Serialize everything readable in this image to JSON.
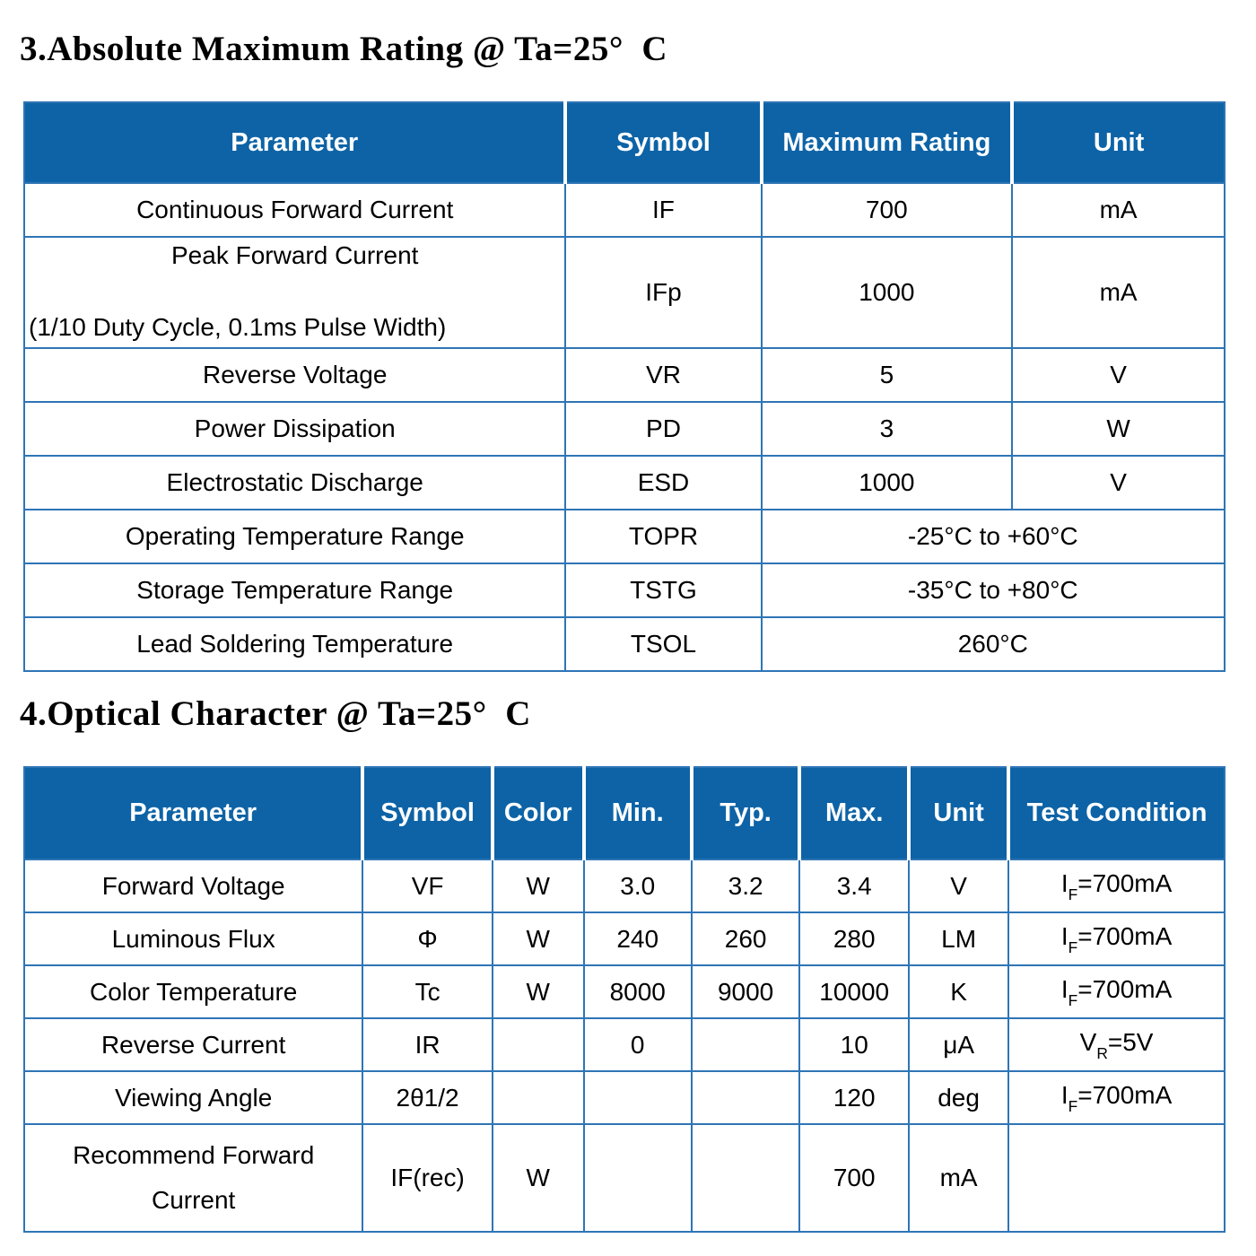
{
  "colors": {
    "header_bg": "#0d63a6",
    "border": "#2e75b6",
    "header_text": "#ffffff",
    "body_text": "#000000"
  },
  "section3": {
    "title": "3.Absolute Maximum Rating @ Ta=25°  C",
    "columns": [
      "Parameter",
      "Symbol",
      "Maximum Rating",
      "Unit"
    ],
    "rows": [
      {
        "parameter": [
          "Continuous Forward Current"
        ],
        "symbol": "IF",
        "rating": "700",
        "unit": "mA"
      },
      {
        "parameter": [
          "Peak Forward Current",
          "(1/10 Duty Cycle, 0.1ms Pulse Width)"
        ],
        "tall": true,
        "second_line_left": true,
        "symbol": "IFp",
        "rating": "1000",
        "unit": "mA"
      },
      {
        "parameter": [
          "Reverse Voltage"
        ],
        "symbol": "VR",
        "rating": "5",
        "unit": "V"
      },
      {
        "parameter": [
          "Power Dissipation"
        ],
        "symbol": "PD",
        "rating": "3",
        "unit": "W"
      },
      {
        "parameter": [
          "Electrostatic Discharge"
        ],
        "symbol": "ESD",
        "rating": "1000",
        "unit": "V"
      },
      {
        "parameter": [
          "Operating Temperature Range"
        ],
        "symbol": "TOPR",
        "rating": "-25°C to +60°C",
        "span_unit": true
      },
      {
        "parameter": [
          "Storage Temperature Range"
        ],
        "symbol": "TSTG",
        "rating": "-35°C to +80°C",
        "span_unit": true
      },
      {
        "parameter": [
          "Lead Soldering Temperature"
        ],
        "symbol": "TSOL",
        "rating": "260°C",
        "span_unit": true
      }
    ]
  },
  "section4": {
    "title": "4.Optical Character @ Ta=25°  C",
    "columns": [
      "Parameter",
      "Symbol",
      "Color",
      "Min.",
      "Typ.",
      "Max.",
      "Unit",
      "Test Condition"
    ],
    "rows": [
      {
        "parameter": [
          "Forward Voltage"
        ],
        "symbol": "VF",
        "color": "W",
        "min": "3.0",
        "typ": "3.2",
        "max": "3.4",
        "unit": "V",
        "test": {
          "main": "I",
          "sub": "F",
          "tail": "=700mA"
        }
      },
      {
        "parameter": [
          "Luminous Flux"
        ],
        "symbol": "Φ",
        "color": "W",
        "min": "240",
        "typ": "260",
        "max": "280",
        "unit": "LM",
        "test": {
          "main": "I",
          "sub": "F",
          "tail": "=700mA"
        }
      },
      {
        "parameter": [
          "Color Temperature"
        ],
        "symbol": "Tc",
        "color": "W",
        "min": "8000",
        "typ": "9000",
        "max": "10000",
        "unit": "K",
        "test": {
          "main": "I",
          "sub": "F",
          "tail": "=700mA"
        }
      },
      {
        "parameter": [
          "Reverse Current"
        ],
        "symbol": "IR",
        "color": "",
        "min": "0",
        "typ": "",
        "max": "10",
        "unit": "μA",
        "test": {
          "main": "V",
          "sub": "R",
          "tail": "=5V"
        }
      },
      {
        "parameter": [
          "Viewing Angle"
        ],
        "symbol": "2θ1/2",
        "color": "",
        "min": "",
        "typ": "",
        "max": "120",
        "unit": "deg",
        "test": {
          "main": "I",
          "sub": "F",
          "tail": "=700mA"
        }
      },
      {
        "parameter": [
          "Recommend Forward",
          "Current"
        ],
        "tall": true,
        "symbol": "IF(rec)",
        "color": "W",
        "color_top": true,
        "min": "",
        "typ": "",
        "max": "700",
        "unit": "mA",
        "test": null
      }
    ]
  }
}
